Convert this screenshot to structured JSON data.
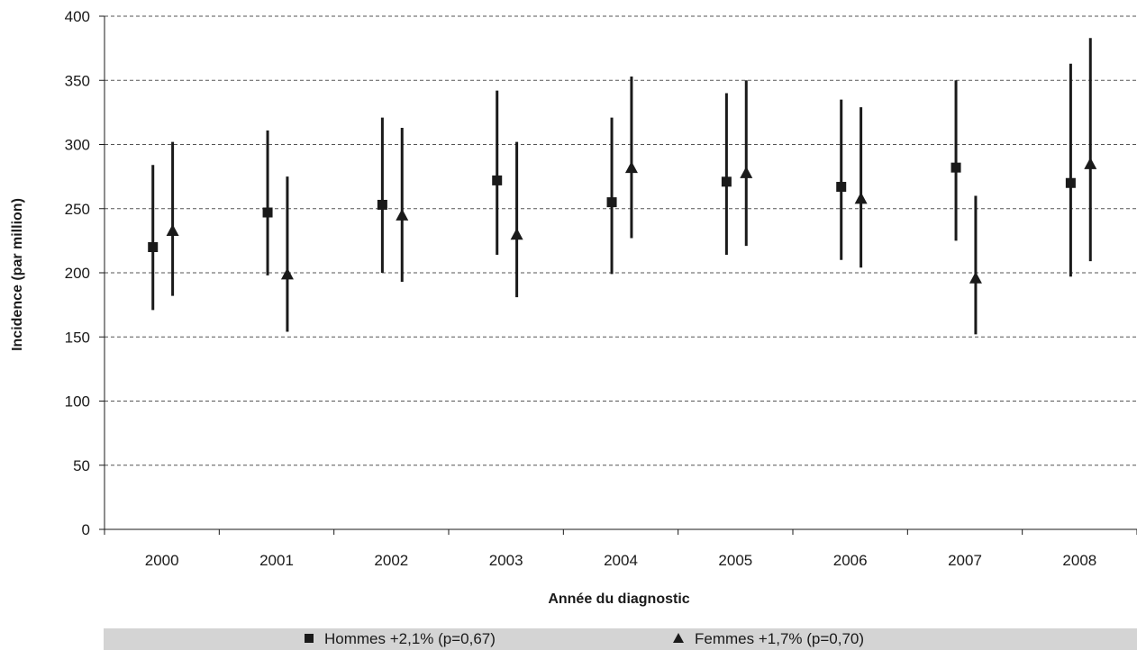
{
  "chart_data": {
    "type": "scatter",
    "title": "",
    "xlabel": "Année du diagnostic",
    "ylabel": "Incidence (par million)",
    "categories": [
      "2000",
      "2001",
      "2002",
      "2003",
      "2004",
      "2005",
      "2006",
      "2007",
      "2008"
    ],
    "ylim": [
      0,
      400
    ],
    "yticks": [
      "0",
      "50",
      "100",
      "150",
      "200",
      "250",
      "300",
      "350",
      "400"
    ],
    "grid": "horizontal dashed",
    "legend_position": "bottom",
    "series": [
      {
        "name": "Hommes +2,1% (p=0,67)",
        "marker": "square",
        "values": [
          220,
          247,
          253,
          272,
          255,
          271,
          267,
          282,
          270
        ],
        "ci_low": [
          171,
          198,
          200,
          214,
          199,
          214,
          210,
          225,
          197
        ],
        "ci_high": [
          284,
          311,
          321,
          342,
          321,
          340,
          335,
          350,
          363
        ]
      },
      {
        "name": "Femmes +1,7% (p=0,70)",
        "marker": "triangle",
        "values": [
          233,
          199,
          245,
          230,
          282,
          278,
          258,
          196,
          285
        ],
        "ci_low": [
          182,
          154,
          193,
          181,
          227,
          221,
          204,
          152,
          209
        ],
        "ci_high": [
          302,
          275,
          313,
          302,
          353,
          350,
          329,
          260,
          383
        ]
      }
    ],
    "colors": {
      "markers": "#1a1a1a",
      "grid": "#555555",
      "legend_background": "#d4d4d4"
    }
  }
}
